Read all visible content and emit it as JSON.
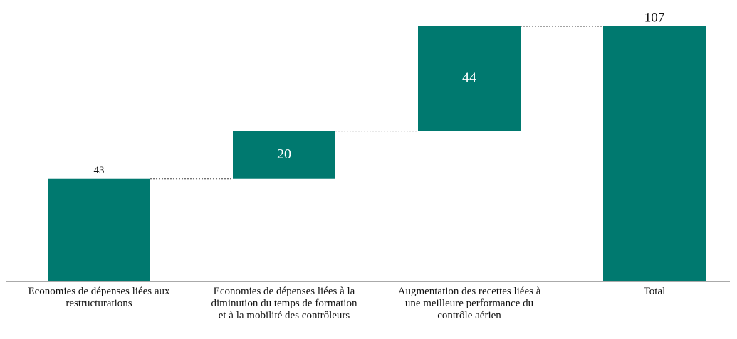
{
  "chart_data": {
    "type": "waterfall",
    "categories": [
      "Economies de dépenses liées aux restructurations",
      "Economies de dépenses liées à la diminution du temps de formation et à la mobilité des contrôleurs",
      "Augmentation des recettes liées à une meilleure performance du contrôle aérien",
      "Total"
    ],
    "values": [
      43,
      20,
      44,
      107
    ],
    "is_total": [
      false,
      false,
      false,
      true
    ],
    "label_position": [
      "above",
      "inside",
      "inside",
      "above"
    ],
    "color": "#00796f",
    "ylim": [
      0,
      107
    ]
  }
}
